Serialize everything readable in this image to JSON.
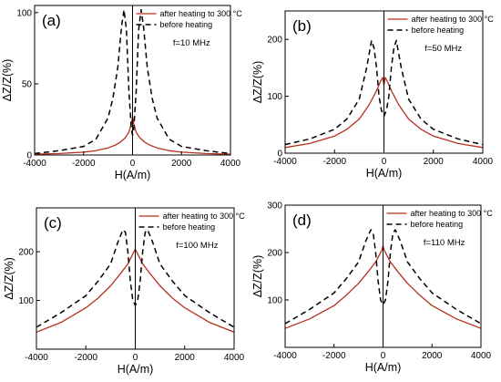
{
  "chart_data": [
    {
      "type": "line",
      "panel_label": "(a)",
      "frequency_label": "f=10 MHz",
      "xlabel": "H(A/m)",
      "ylabel": "ΔZ/Z(%)",
      "xlim": [
        -4000,
        4000
      ],
      "ylim": [
        0,
        105
      ],
      "xticks": [
        -4000,
        -2000,
        0,
        2000,
        4000
      ],
      "yticks": [
        0,
        50,
        100
      ],
      "legend_position": "top-right",
      "series": [
        {
          "name": "after heating to 300 °C",
          "color": "#b5301d",
          "style": "solid",
          "x": [
            -4000,
            -3000,
            -2000,
            -1500,
            -1000,
            -700,
            -500,
            -300,
            -150,
            -50,
            0,
            50,
            150,
            300,
            500,
            700,
            1000,
            1500,
            2000,
            3000,
            4000
          ],
          "y": [
            0.5,
            1,
            2,
            3,
            5,
            7,
            9,
            12,
            16,
            22,
            27,
            22,
            16,
            12,
            9,
            7,
            5,
            3,
            2,
            1,
            0.5
          ]
        },
        {
          "name": "before heating",
          "color": "#000000",
          "style": "dashed",
          "x": [
            -4000,
            -3000,
            -2000,
            -1500,
            -1000,
            -800,
            -600,
            -450,
            -350,
            -250,
            -150,
            -50,
            0,
            50,
            150,
            250,
            350,
            450,
            600,
            800,
            1000,
            1500,
            2000,
            3000,
            4000
          ],
          "y": [
            1,
            3,
            6,
            11,
            26,
            40,
            62,
            90,
            102,
            88,
            45,
            18,
            14,
            18,
            45,
            88,
            102,
            90,
            62,
            40,
            26,
            11,
            6,
            3,
            1
          ]
        }
      ]
    },
    {
      "type": "line",
      "panel_label": "(b)",
      "frequency_label": "f=50 MHz",
      "xlabel": "H(A/m)",
      "ylabel": "ΔZ/Z(%)",
      "xlim": [
        -4000,
        4000
      ],
      "ylim": [
        0,
        250
      ],
      "xticks": [
        -4000,
        -2000,
        0,
        2000,
        4000
      ],
      "yticks": [
        0,
        100,
        200
      ],
      "legend_position": "top-right",
      "series": [
        {
          "name": "after heating to 300 °C",
          "color": "#b5301d",
          "style": "solid",
          "x": [
            -4000,
            -3000,
            -2000,
            -1500,
            -1000,
            -600,
            -300,
            -150,
            -50,
            0,
            50,
            150,
            300,
            600,
            1000,
            1500,
            2000,
            3000,
            4000
          ],
          "y": [
            10,
            17,
            30,
            42,
            60,
            85,
            110,
            125,
            133,
            120,
            133,
            125,
            110,
            85,
            60,
            42,
            30,
            17,
            10
          ]
        },
        {
          "name": "before heating",
          "color": "#000000",
          "style": "dashed",
          "x": [
            -4000,
            -3000,
            -2000,
            -1500,
            -1000,
            -700,
            -500,
            -400,
            -300,
            -200,
            -100,
            0,
            100,
            200,
            300,
            400,
            500,
            700,
            1000,
            1500,
            2000,
            3000,
            4000
          ],
          "y": [
            15,
            25,
            42,
            60,
            95,
            150,
            198,
            185,
            150,
            100,
            75,
            65,
            75,
            100,
            150,
            185,
            198,
            150,
            95,
            60,
            42,
            25,
            15
          ]
        }
      ]
    },
    {
      "type": "line",
      "panel_label": "(c)",
      "frequency_label": "f=100 MHz",
      "xlabel": "H(A/m)",
      "ylabel": "ΔZ/Z(%)",
      "xlim": [
        -4000,
        4000
      ],
      "ylim": [
        0,
        290
      ],
      "xticks": [
        -4000,
        -2000,
        0,
        2000,
        4000
      ],
      "yticks": [
        100,
        200
      ],
      "legend_position": "top-right",
      "series": [
        {
          "name": "after heating to 300 °C",
          "color": "#b5301d",
          "style": "solid",
          "x": [
            -4000,
            -3000,
            -2000,
            -1500,
            -1000,
            -600,
            -300,
            -150,
            -50,
            0,
            50,
            150,
            300,
            600,
            1000,
            1500,
            2000,
            3000,
            4000
          ],
          "y": [
            35,
            55,
            85,
            105,
            130,
            155,
            175,
            190,
            200,
            205,
            200,
            190,
            175,
            155,
            130,
            105,
            85,
            55,
            35
          ]
        },
        {
          "name": "before heating",
          "color": "#000000",
          "style": "dashed",
          "x": [
            -4000,
            -3000,
            -2000,
            -1500,
            -1000,
            -700,
            -500,
            -400,
            -300,
            -200,
            -100,
            0,
            100,
            200,
            300,
            400,
            500,
            700,
            1000,
            1500,
            2000,
            3000,
            4000
          ],
          "y": [
            45,
            75,
            110,
            140,
            175,
            220,
            245,
            240,
            200,
            140,
            100,
            90,
            100,
            140,
            200,
            240,
            245,
            220,
            175,
            140,
            110,
            75,
            45
          ]
        }
      ]
    },
    {
      "type": "line",
      "panel_label": "(d)",
      "frequency_label": "f=110 MHz",
      "xlabel": "H(A/m)",
      "ylabel": "ΔZ/Z(%)",
      "xlim": [
        -4000,
        4000
      ],
      "ylim": [
        0,
        300
      ],
      "xticks": [
        -4000,
        -2000,
        0,
        2000,
        4000
      ],
      "yticks": [
        100,
        200,
        300
      ],
      "legend_position": "top-right",
      "series": [
        {
          "name": "after heating to 300 °C",
          "color": "#b5301d",
          "style": "solid",
          "x": [
            -4000,
            -3000,
            -2000,
            -1500,
            -1000,
            -600,
            -300,
            -150,
            -50,
            0,
            50,
            150,
            300,
            600,
            1000,
            1500,
            2000,
            3000,
            4000
          ],
          "y": [
            40,
            60,
            88,
            110,
            135,
            160,
            180,
            195,
            205,
            215,
            205,
            195,
            180,
            160,
            135,
            110,
            88,
            60,
            40
          ]
        },
        {
          "name": "before heating",
          "color": "#000000",
          "style": "dashed",
          "x": [
            -4000,
            -3000,
            -2000,
            -1500,
            -1000,
            -700,
            -500,
            -400,
            -300,
            -200,
            -100,
            0,
            100,
            200,
            300,
            400,
            500,
            700,
            1000,
            1500,
            2000,
            3000,
            4000
          ],
          "y": [
            50,
            80,
            115,
            145,
            180,
            225,
            248,
            240,
            200,
            140,
            100,
            90,
            100,
            140,
            200,
            240,
            248,
            225,
            180,
            145,
            115,
            80,
            50
          ]
        }
      ]
    }
  ]
}
